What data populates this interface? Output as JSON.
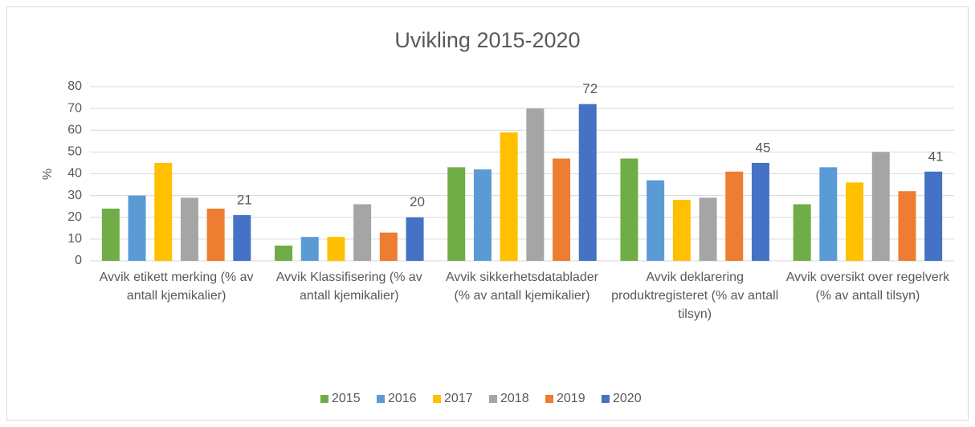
{
  "chart_data": {
    "type": "bar",
    "title": "Uvikling 2015-2020",
    "y_label": "%",
    "categories": [
      "Avvik etikett merking (% av antall kjemikalier)",
      "Avvik Klassifisering (% av antall kjemikalier)",
      "Avvik sikkerhetsdatablader (% av antall kjemikalier)",
      "Avvik deklarering produktregisteret (% av antall tilsyn)",
      "Avvik oversikt over regelverk (% av antall tilsyn)"
    ],
    "series": [
      {
        "name": "2015",
        "color": "#70ad47",
        "values": [
          24,
          7,
          43,
          47,
          26
        ]
      },
      {
        "name": "2016",
        "color": "#5b9bd5",
        "values": [
          30,
          11,
          42,
          37,
          43
        ]
      },
      {
        "name": "2017",
        "color": "#ffc000",
        "values": [
          45,
          11,
          59,
          28,
          36
        ]
      },
      {
        "name": "2018",
        "color": "#a5a5a5",
        "values": [
          29,
          26,
          70,
          29,
          50
        ]
      },
      {
        "name": "2019",
        "color": "#ed7d31",
        "values": [
          24,
          13,
          47,
          41,
          32
        ]
      },
      {
        "name": "2020",
        "color": "#4472c4",
        "values": [
          21,
          20,
          72,
          45,
          41
        ],
        "data_labels": true
      }
    ],
    "ylim": [
      0,
      80
    ],
    "yticks": [
      0,
      10,
      20,
      30,
      40,
      50,
      60,
      70,
      80
    ],
    "grid": true,
    "legend": "bottom"
  }
}
